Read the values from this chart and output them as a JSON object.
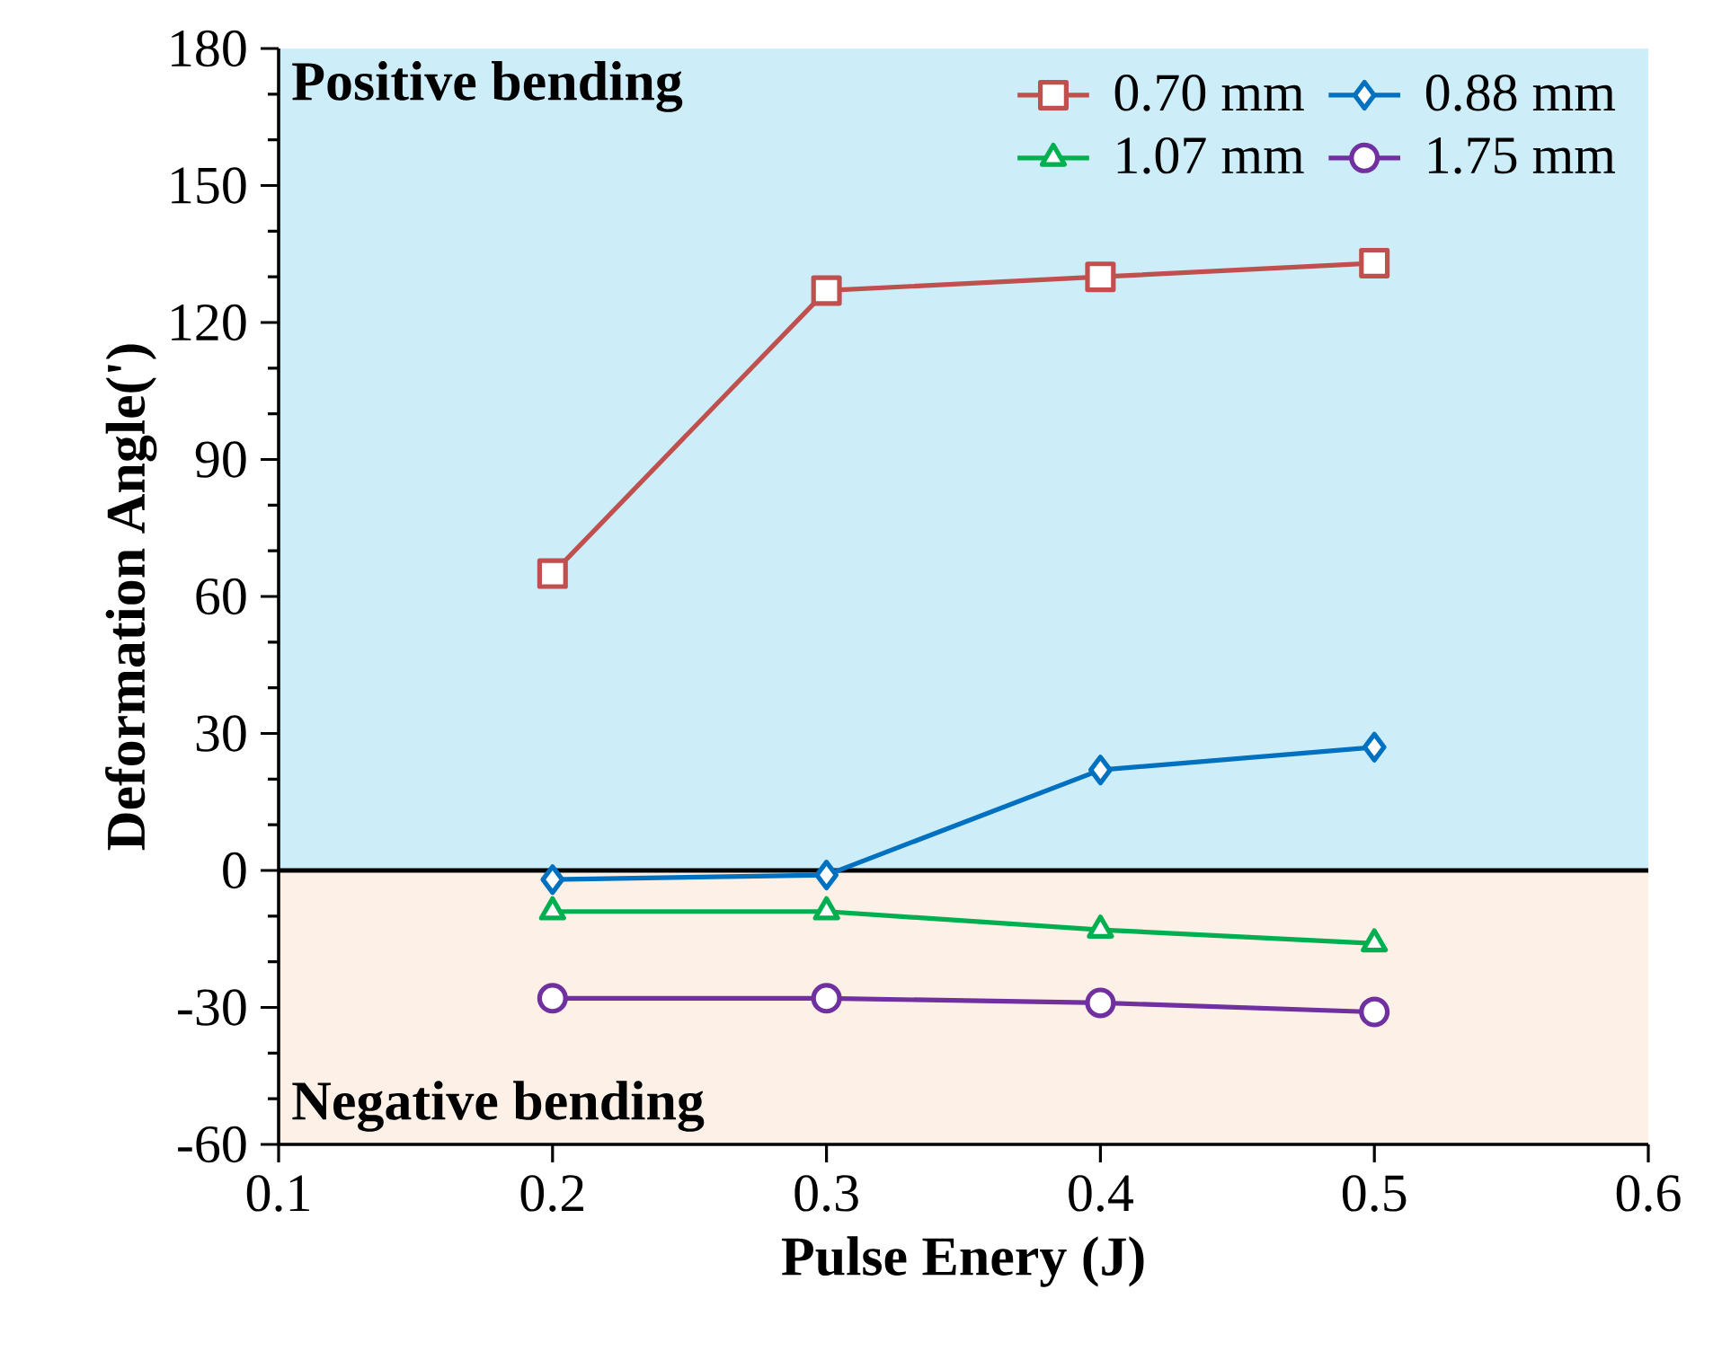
{
  "chart_data": {
    "type": "line",
    "xlabel": "Pulse Enery (J)",
    "ylabel": "Deformation Angle(')",
    "x": [
      0.2,
      0.3,
      0.4,
      0.5
    ],
    "series": [
      {
        "name": "0.70 mm",
        "color": "#c0504d",
        "marker": "square",
        "values": [
          65,
          127,
          130,
          133
        ]
      },
      {
        "name": "0.88 mm",
        "color": "#0070c0",
        "marker": "diamond",
        "values": [
          -2,
          -1,
          22,
          27
        ]
      },
      {
        "name": "1.07 mm",
        "color": "#00b050",
        "marker": "triangle",
        "values": [
          -9,
          -9,
          -13,
          -16
        ]
      },
      {
        "name": "1.75 mm",
        "color": "#7030a0",
        "marker": "circle",
        "values": [
          -28,
          -28,
          -29,
          -31
        ]
      }
    ],
    "bands": [
      {
        "axis": "y",
        "from": 0,
        "to": 180,
        "label": "Positive bending",
        "color": "#cdedf9"
      },
      {
        "axis": "y",
        "from": -60,
        "to": 0,
        "label": "Negative bending",
        "color": "#fdf0e7"
      }
    ],
    "ref_lines": [
      {
        "axis": "y",
        "value": 0,
        "color": "#000000"
      }
    ],
    "xlim": [
      0.1,
      0.6
    ],
    "xticks": [
      0.1,
      0.2,
      0.3,
      0.4,
      0.5,
      0.6
    ],
    "ylim": [
      -60,
      180
    ],
    "yticks": [
      -60,
      -30,
      0,
      30,
      60,
      90,
      120,
      150,
      180
    ],
    "grid": false,
    "legend": "top right",
    "line_style": "solid"
  }
}
